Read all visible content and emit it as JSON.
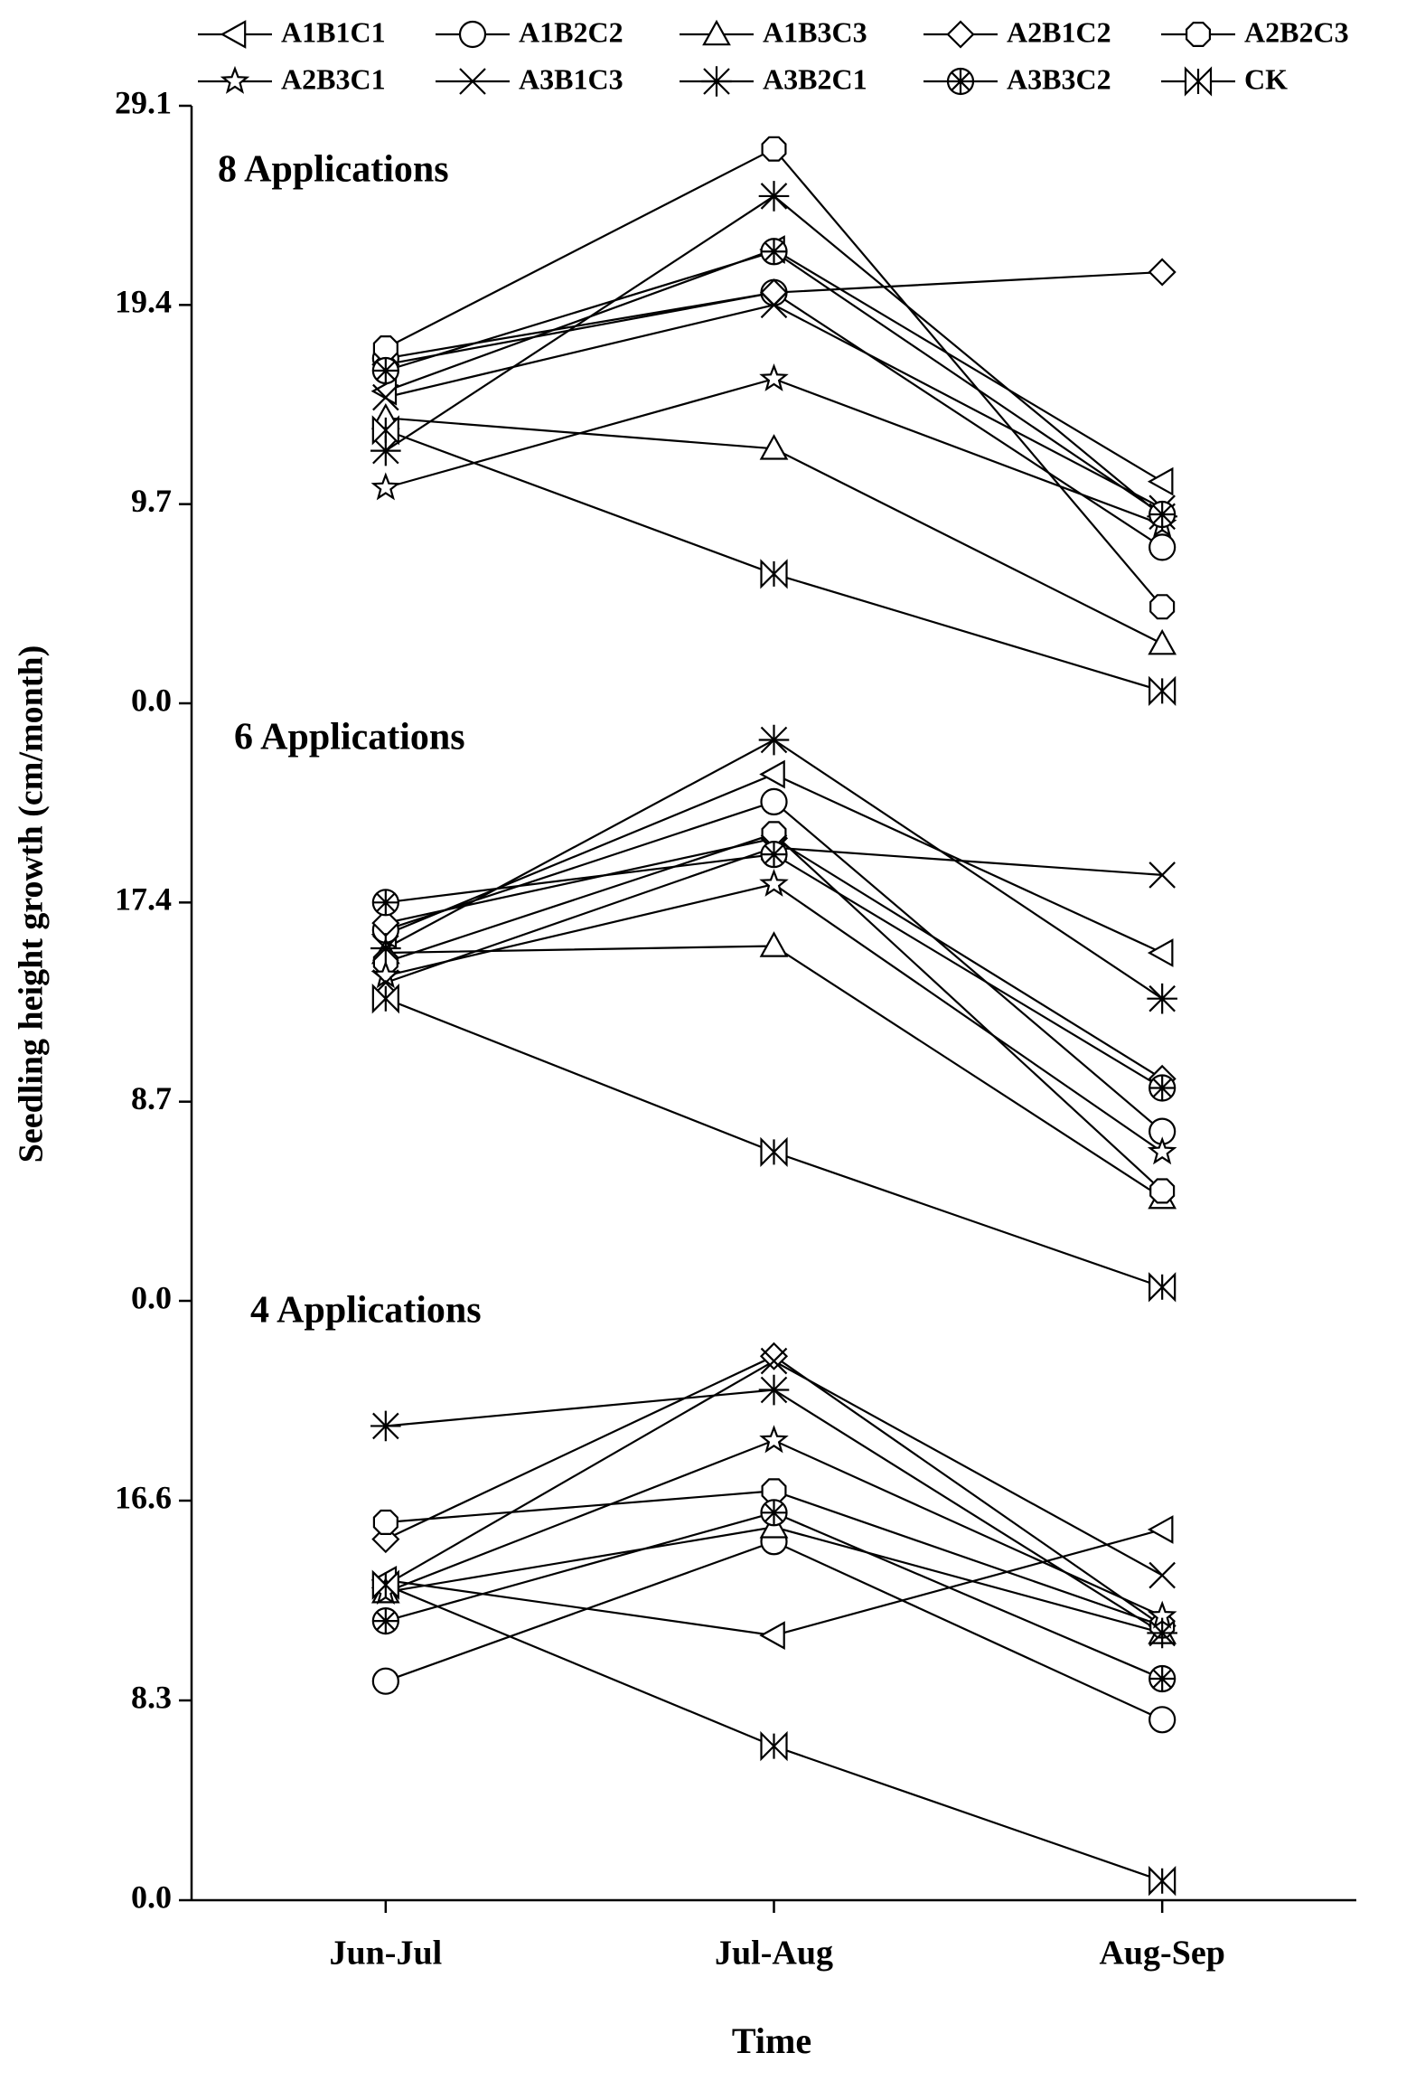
{
  "chart_data": {
    "type": "line",
    "categories": [
      "Jun-Jul",
      "Jul-Aug",
      "Aug-Sep"
    ],
    "xlabel": "Time",
    "ylabel": "Seedling height growth (cm/month)",
    "color": "#000000",
    "panels": [
      {
        "annotation": "8 Applications",
        "ylim": [
          0,
          29.1
        ],
        "yticks": [
          {
            "value": 0,
            "label": "0.0"
          },
          9.7,
          19.4,
          29.1
        ]
      },
      {
        "annotation": "6 Applications",
        "ylim": [
          0,
          26.1
        ],
        "yticks": [
          {
            "value": 0,
            "label": "0.0"
          },
          8.7,
          17.4
        ]
      },
      {
        "annotation": "4 Applications",
        "ylim": [
          0,
          24.9
        ],
        "yticks": [
          {
            "value": 0,
            "label": "0.0"
          },
          8.3,
          16.6
        ]
      }
    ],
    "series": [
      {
        "name": "A1B1C1",
        "marker": "ltri",
        "values": [
          [
            15.2,
            22.1,
            10.8
          ],
          [
            16.0,
            23.0,
            15.2
          ],
          [
            13.3,
            11.0,
            15.4
          ]
        ]
      },
      {
        "name": "A1B2C2",
        "marker": "circle",
        "values": [
          [
            16.8,
            20.0,
            7.6
          ],
          [
            16.2,
            21.8,
            7.4
          ],
          [
            9.1,
            14.9,
            7.5
          ]
        ]
      },
      {
        "name": "A1B3C3",
        "marker": "tri",
        "values": [
          [
            13.9,
            12.4,
            2.9
          ],
          [
            15.2,
            15.5,
            4.5
          ],
          [
            12.8,
            15.5,
            11.1
          ]
        ]
      },
      {
        "name": "A2B1C2",
        "marker": "diamond",
        "values": [
          [
            16.5,
            20.0,
            21.0
          ],
          [
            16.5,
            20.2,
            9.7
          ],
          [
            15.0,
            22.6,
            11.4
          ]
        ]
      },
      {
        "name": "A2B2C3",
        "marker": "hex",
        "values": [
          [
            17.3,
            27.0,
            4.7
          ],
          [
            14.8,
            20.4,
            4.8
          ],
          [
            15.7,
            17.0,
            11.4
          ]
        ]
      },
      {
        "name": "A2B3C1",
        "marker": "star",
        "values": [
          [
            10.5,
            15.8,
            8.7
          ],
          [
            14.2,
            18.2,
            6.5
          ],
          [
            12.8,
            19.1,
            11.8
          ]
        ]
      },
      {
        "name": "A3B1C3",
        "marker": "x",
        "values": [
          [
            14.9,
            19.4,
            9.5
          ],
          [
            13.9,
            19.8,
            18.6
          ],
          [
            13.1,
            22.4,
            13.5
          ]
        ]
      },
      {
        "name": "A3B2C1",
        "marker": "asterisk",
        "values": [
          [
            12.3,
            24.7,
            9.1
          ],
          [
            15.4,
            24.5,
            13.2
          ],
          [
            19.7,
            21.2,
            11.1
          ]
        ]
      },
      {
        "name": "A3B3C2",
        "marker": "circx",
        "values": [
          [
            16.2,
            22.0,
            9.2
          ],
          [
            17.4,
            19.5,
            9.3
          ],
          [
            11.6,
            16.1,
            9.2
          ]
        ]
      },
      {
        "name": "CK",
        "marker": "ck",
        "values": [
          [
            13.3,
            6.3,
            0.6
          ],
          [
            13.2,
            6.5,
            0.6
          ],
          [
            13.1,
            6.4,
            0.8
          ]
        ]
      }
    ]
  }
}
